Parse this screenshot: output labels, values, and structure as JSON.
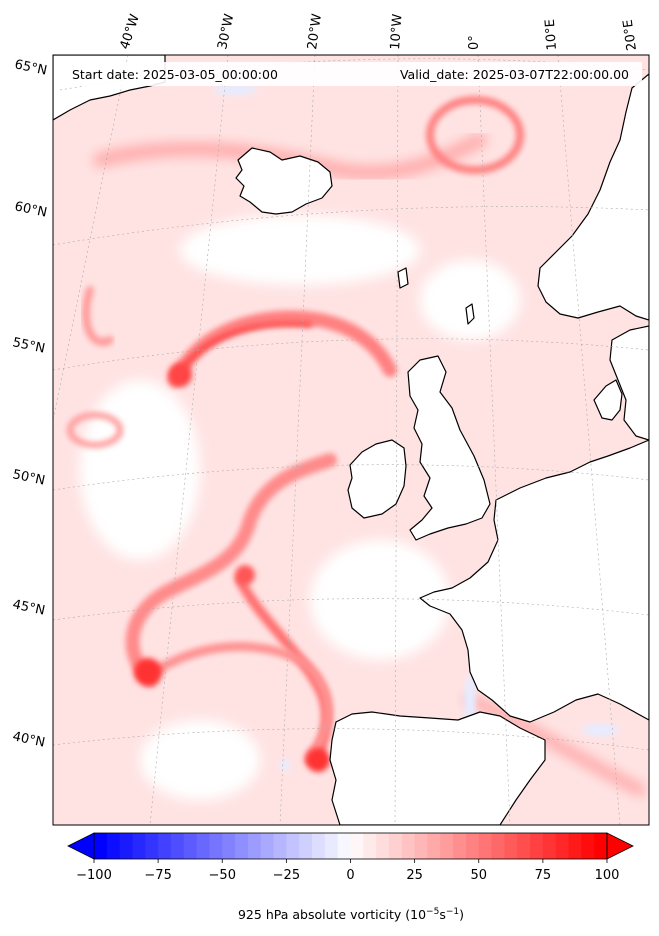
{
  "header": {
    "start_date": "Start date: 2025-03-05_00:00:00",
    "valid_date": "Valid_date: 2025-03-07T22:00:00.00"
  },
  "map": {
    "lon_labels": [
      "40°W",
      "30°W",
      "20°W",
      "10°W",
      "0°",
      "10°E",
      "20°E"
    ],
    "lat_labels": [
      "65°N",
      "60°N",
      "55°N",
      "50°N",
      "45°N",
      "40°N"
    ],
    "field_colors": {
      "negative": "#0000ff",
      "zero": "#ffffff",
      "positive": "#ff0000"
    }
  },
  "colorbar": {
    "ticks": [
      "−100",
      "−75",
      "−50",
      "−25",
      "0",
      "25",
      "50",
      "75",
      "100"
    ],
    "vmin": -100,
    "vmax": 100,
    "n_levels": 40,
    "label_main": "925 hPa absolute vorticity (10",
    "label_exp1": "−5",
    "label_mid": "s",
    "label_exp2": "−1",
    "label_end": ")"
  }
}
